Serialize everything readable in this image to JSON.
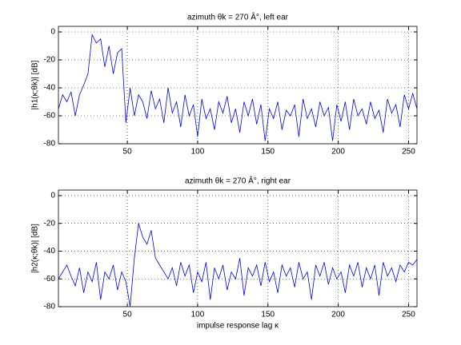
{
  "chart_data": [
    {
      "type": "line",
      "title": "azimuth θk = 270 Â°, left ear",
      "ylabel": "|h1(κ;θk)| [dB]",
      "x": [
        1,
        4,
        7,
        10,
        13,
        16,
        19,
        22,
        25,
        28,
        31,
        34,
        37,
        40,
        43,
        46,
        49,
        52,
        55,
        58,
        61,
        64,
        67,
        70,
        73,
        76,
        79,
        82,
        85,
        88,
        91,
        94,
        97,
        100,
        103,
        106,
        109,
        112,
        115,
        118,
        121,
        124,
        127,
        130,
        133,
        136,
        139,
        142,
        145,
        148,
        151,
        154,
        157,
        160,
        163,
        166,
        169,
        172,
        175,
        178,
        181,
        184,
        187,
        190,
        193,
        196,
        199,
        202,
        205,
        208,
        211,
        214,
        217,
        220,
        223,
        226,
        229,
        232,
        235,
        238,
        241,
        244,
        247,
        250,
        253,
        256
      ],
      "series": [
        {
          "name": "left ear",
          "color": "#0000ff",
          "values": [
            -55,
            -45,
            -50,
            -43,
            -60,
            -45,
            -38,
            -30,
            -2,
            -8,
            -5,
            -25,
            -10,
            -30,
            -15,
            -12,
            -65,
            -40,
            -60,
            -45,
            -50,
            -62,
            -42,
            -55,
            -48,
            -65,
            -40,
            -58,
            -50,
            -68,
            -45,
            -60,
            -52,
            -75,
            -48,
            -62,
            -55,
            -70,
            -50,
            -58,
            -46,
            -65,
            -55,
            -72,
            -50,
            -60,
            -48,
            -66,
            -52,
            -78,
            -55,
            -62,
            -50,
            -70,
            -56,
            -60,
            -52,
            -75,
            -48,
            -62,
            -55,
            -68,
            -50,
            -60,
            -54,
            -78,
            -52,
            -64,
            -50,
            -70,
            -48,
            -60,
            -55,
            -66,
            -50,
            -62,
            -56,
            -72,
            -48,
            -58,
            -52,
            -68,
            -45,
            -55,
            -44,
            -55
          ]
        }
      ],
      "xlim": [
        1,
        256
      ],
      "ylim": [
        -80,
        4
      ],
      "xticks": [
        50,
        100,
        150,
        200,
        250
      ],
      "yticks": [
        -80,
        -60,
        -40,
        -20,
        0
      ],
      "grid": true
    },
    {
      "type": "line",
      "title": "azimuth θk = 270 Â°, right ear",
      "ylabel": "|h2(κ;θk)| [dB]",
      "xlabel": "impulse response lag κ",
      "x": [
        1,
        4,
        7,
        10,
        13,
        16,
        19,
        22,
        25,
        28,
        31,
        34,
        37,
        40,
        43,
        46,
        49,
        52,
        55,
        58,
        61,
        64,
        67,
        70,
        73,
        76,
        79,
        82,
        85,
        88,
        91,
        94,
        97,
        100,
        103,
        106,
        109,
        112,
        115,
        118,
        121,
        124,
        127,
        130,
        133,
        136,
        139,
        142,
        145,
        148,
        151,
        154,
        157,
        160,
        163,
        166,
        169,
        172,
        175,
        178,
        181,
        184,
        187,
        190,
        193,
        196,
        199,
        202,
        205,
        208,
        211,
        214,
        217,
        220,
        223,
        226,
        229,
        232,
        235,
        238,
        241,
        244,
        247,
        250,
        253,
        256
      ],
      "series": [
        {
          "name": "right ear",
          "color": "#0000ff",
          "values": [
            -60,
            -55,
            -50,
            -58,
            -65,
            -52,
            -70,
            -55,
            -62,
            -48,
            -75,
            -55,
            -60,
            -50,
            -68,
            -55,
            -62,
            -80,
            -45,
            -20,
            -30,
            -35,
            -25,
            -45,
            -50,
            -55,
            -60,
            -52,
            -65,
            -48,
            -58,
            -50,
            -70,
            -55,
            -62,
            -48,
            -75,
            -52,
            -60,
            -50,
            -68,
            -55,
            -60,
            -45,
            -72,
            -52,
            -58,
            -50,
            -65,
            -48,
            -62,
            -55,
            -70,
            -50,
            -58,
            -52,
            -66,
            -48,
            -60,
            -55,
            -75,
            -50,
            -58,
            -48,
            -64,
            -52,
            -60,
            -55,
            -70,
            -50,
            -58,
            -48,
            -66,
            -52,
            -60,
            -50,
            -72,
            -48,
            -58,
            -52,
            -62,
            -50,
            -55,
            -48,
            -50,
            -46
          ]
        }
      ],
      "xlim": [
        1,
        256
      ],
      "ylim": [
        -80,
        4
      ],
      "xticks": [
        50,
        100,
        150,
        200,
        250
      ],
      "yticks": [
        -80,
        -60,
        -40,
        -20,
        0
      ],
      "grid": true
    }
  ]
}
